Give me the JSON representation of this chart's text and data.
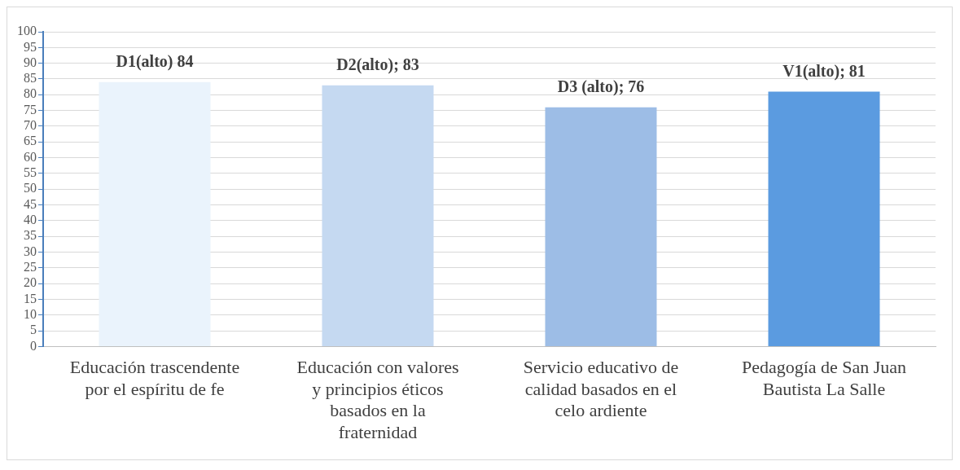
{
  "chart_data": {
    "type": "bar",
    "categories": [
      "Educación trascendente por el espíritu de fe",
      "Educación con valores y principios éticos basados en la fraternidad",
      "Servicio educativo de calidad basados en el celo ardiente",
      "Pedagogía de San Juan Bautista La Salle"
    ],
    "values": [
      84,
      83,
      76,
      81
    ],
    "colors": [
      "#eaf3fc",
      "#c5d9f1",
      "#9dbde6",
      "#5b9be0"
    ],
    "value_labels": [
      "D1(alto) 84",
      "D2(alto); 83",
      "D3 (alto); 76",
      "V1(alto); 81"
    ],
    "ylim": [
      0,
      100
    ],
    "yticks": [
      0,
      5,
      10,
      15,
      20,
      25,
      30,
      35,
      40,
      45,
      50,
      55,
      60,
      65,
      70,
      75,
      80,
      85,
      90,
      95,
      100
    ],
    "grid": "y",
    "legend": false
  }
}
